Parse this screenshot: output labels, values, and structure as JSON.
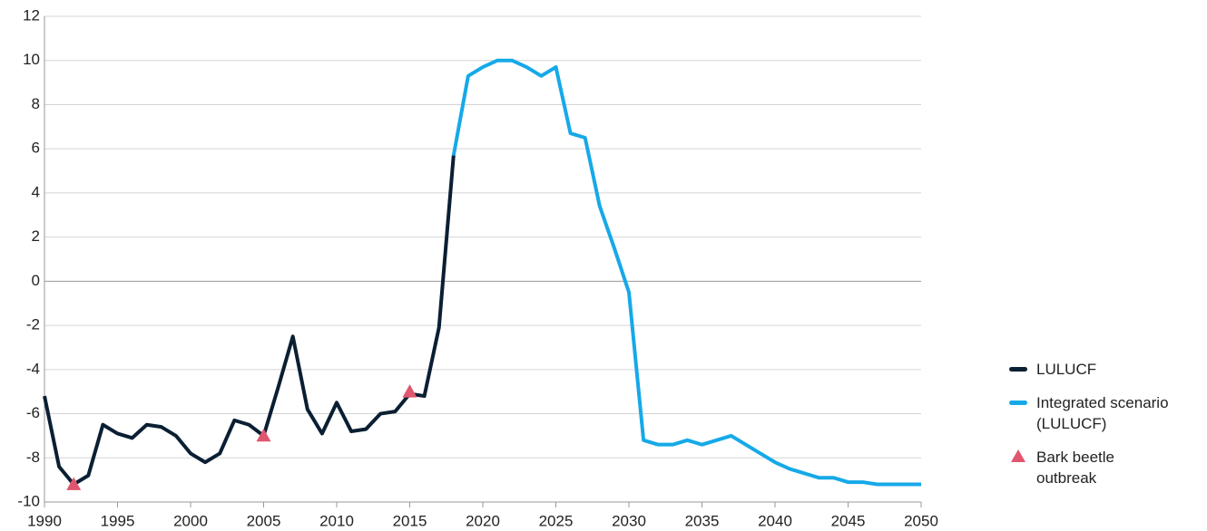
{
  "chart_data": {
    "type": "line",
    "x": [
      1990,
      1991,
      1992,
      1993,
      1994,
      1995,
      1996,
      1997,
      1998,
      1999,
      2000,
      2001,
      2002,
      2003,
      2004,
      2005,
      2006,
      2007,
      2008,
      2009,
      2010,
      2011,
      2012,
      2013,
      2014,
      2015,
      2016,
      2017,
      2018,
      2019,
      2020,
      2021,
      2022,
      2023,
      2024,
      2025,
      2026,
      2027,
      2028,
      2029,
      2030,
      2031,
      2032,
      2033,
      2034,
      2035,
      2036,
      2037,
      2038,
      2039,
      2040,
      2041,
      2042,
      2043,
      2044,
      2045,
      2046,
      2047,
      2048,
      2049,
      2050
    ],
    "series": [
      {
        "name": "LULUCF",
        "color": "#0b1f33",
        "type": "line",
        "values": [
          -5.2,
          -8.4,
          -9.2,
          -8.8,
          -6.5,
          -6.9,
          -7.1,
          -6.5,
          -6.6,
          -7.0,
          -7.8,
          -8.2,
          -7.8,
          -6.3,
          -6.5,
          -7.0,
          -4.8,
          -2.5,
          -5.8,
          -6.9,
          -5.5,
          -6.8,
          -6.7,
          -6.0,
          -5.9,
          -5.1,
          -5.2,
          -2.1,
          5.7,
          null,
          null,
          null,
          null,
          null,
          null,
          null,
          null,
          null,
          null,
          null,
          null,
          null,
          null,
          null,
          null,
          null,
          null,
          null,
          null,
          null,
          null,
          null,
          null,
          null,
          null,
          null,
          null,
          null,
          null,
          null,
          null
        ]
      },
      {
        "name": "Integrated scenario (LULUCF)",
        "color": "#16a9e8",
        "type": "line",
        "values": [
          null,
          null,
          null,
          null,
          null,
          null,
          null,
          null,
          null,
          null,
          null,
          null,
          null,
          null,
          null,
          null,
          null,
          null,
          null,
          null,
          null,
          null,
          null,
          null,
          null,
          null,
          null,
          null,
          5.7,
          9.3,
          9.7,
          10.0,
          10.0,
          9.7,
          9.3,
          9.7,
          6.7,
          6.5,
          3.4,
          1.5,
          -0.5,
          -7.2,
          -7.4,
          -7.4,
          -7.2,
          -7.4,
          -7.2,
          -7.0,
          -7.4,
          -7.8,
          -8.2,
          -8.5,
          -8.7,
          -8.9,
          -8.9,
          -9.1,
          -9.1,
          -9.2,
          -9.2,
          -9.2,
          -9.2
        ]
      },
      {
        "name": "Bark beetle outbreak",
        "color": "#e0566e",
        "type": "marker",
        "values": [
          null,
          null,
          -9.2,
          null,
          null,
          null,
          null,
          null,
          null,
          null,
          null,
          null,
          null,
          null,
          null,
          -7.0,
          null,
          null,
          null,
          null,
          null,
          null,
          null,
          null,
          null,
          -5.0,
          null,
          null,
          null,
          null,
          null,
          null,
          null,
          null,
          null,
          null,
          null,
          null,
          null,
          null,
          null,
          null,
          null,
          null,
          null,
          null,
          null,
          null,
          null,
          null,
          null,
          null,
          null,
          null,
          null,
          null,
          null,
          null,
          null,
          null,
          null
        ]
      }
    ],
    "xlim": [
      1990,
      2050
    ],
    "xticks": [
      1990,
      1995,
      2000,
      2005,
      2010,
      2015,
      2020,
      2025,
      2030,
      2035,
      2040,
      2045,
      2050
    ],
    "ylim": [
      -10,
      12
    ],
    "yticks": [
      -10,
      -8,
      -6,
      -4,
      -2,
      0,
      2,
      4,
      6,
      8,
      10,
      12
    ],
    "grid": true,
    "legend": "right"
  }
}
